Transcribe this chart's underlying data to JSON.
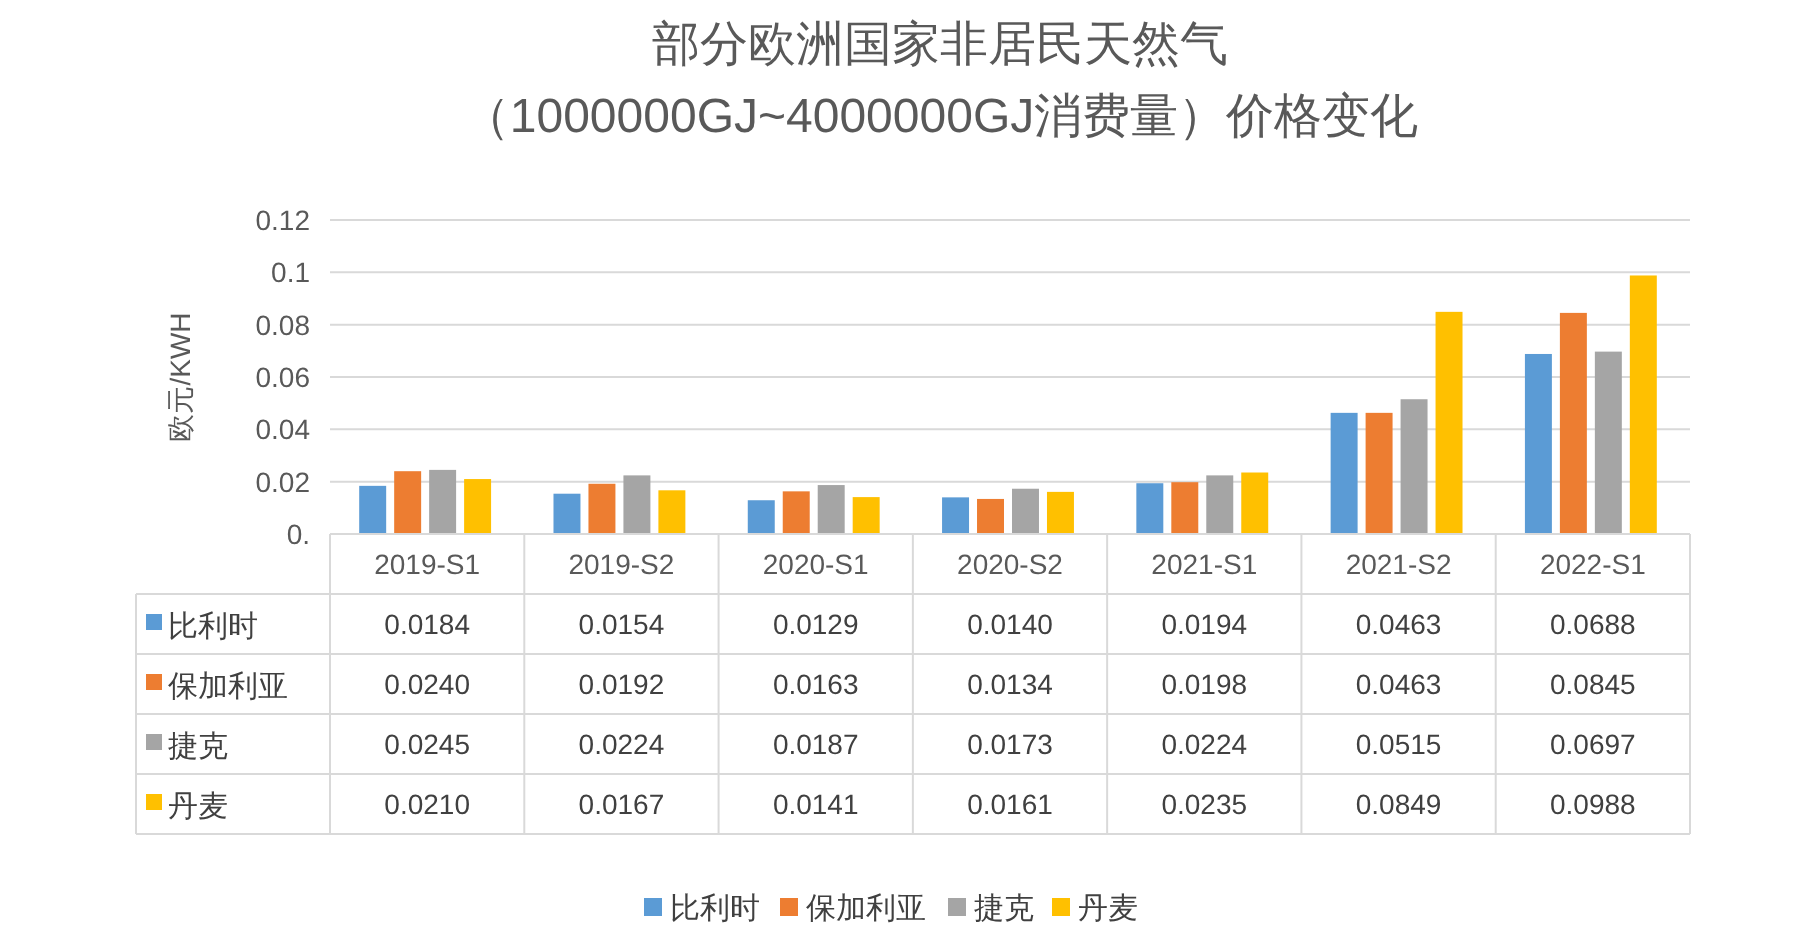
{
  "chart_data": {
    "type": "bar",
    "title": "部分欧洲国家非居民天然气（1000000GJ~4000000GJ消费量）价格变化",
    "ylabel": "欧元/KWH",
    "categories": [
      "2019-S1",
      "2019-S2",
      "2020-S1",
      "2020-S2",
      "2021-S1",
      "2021-S2",
      "2022-S1"
    ],
    "series": [
      {
        "name": "比利时",
        "color": "#5b9bd5",
        "values": [
          0.0184,
          0.0154,
          0.0129,
          0.014,
          0.0194,
          0.0463,
          0.0688
        ],
        "value_labels": [
          "0.0184",
          "0.0154",
          "0.0129",
          "0.0140",
          "0.0194",
          "0.0463",
          "0.0688"
        ]
      },
      {
        "name": "保加利亚",
        "color": "#ed7d31",
        "values": [
          0.024,
          0.0192,
          0.0163,
          0.0134,
          0.0198,
          0.0463,
          0.0845
        ],
        "value_labels": [
          "0.0240",
          "0.0192",
          "0.0163",
          "0.0134",
          "0.0198",
          "0.0463",
          "0.0845"
        ]
      },
      {
        "name": "捷克",
        "color": "#a5a5a5",
        "values": [
          0.0245,
          0.0224,
          0.0187,
          0.0173,
          0.0224,
          0.0515,
          0.0697
        ],
        "value_labels": [
          "0.0245",
          "0.0224",
          "0.0187",
          "0.0173",
          "0.0224",
          "0.0515",
          "0.0697"
        ]
      },
      {
        "name": "丹麦",
        "color": "#ffc000",
        "values": [
          0.021,
          0.0167,
          0.0141,
          0.0161,
          0.0235,
          0.0849,
          0.0988
        ],
        "value_labels": [
          "0.0210",
          "0.0167",
          "0.0141",
          "0.0161",
          "0.0235",
          "0.0849",
          "0.0988"
        ]
      }
    ],
    "ylim": [
      0,
      0.12
    ],
    "yticks": [
      {
        "value": 0,
        "label": "0."
      },
      0.02,
      0.04,
      0.06,
      0.08,
      0.1,
      0.12
    ],
    "grid": "y",
    "legend": "bottom"
  }
}
